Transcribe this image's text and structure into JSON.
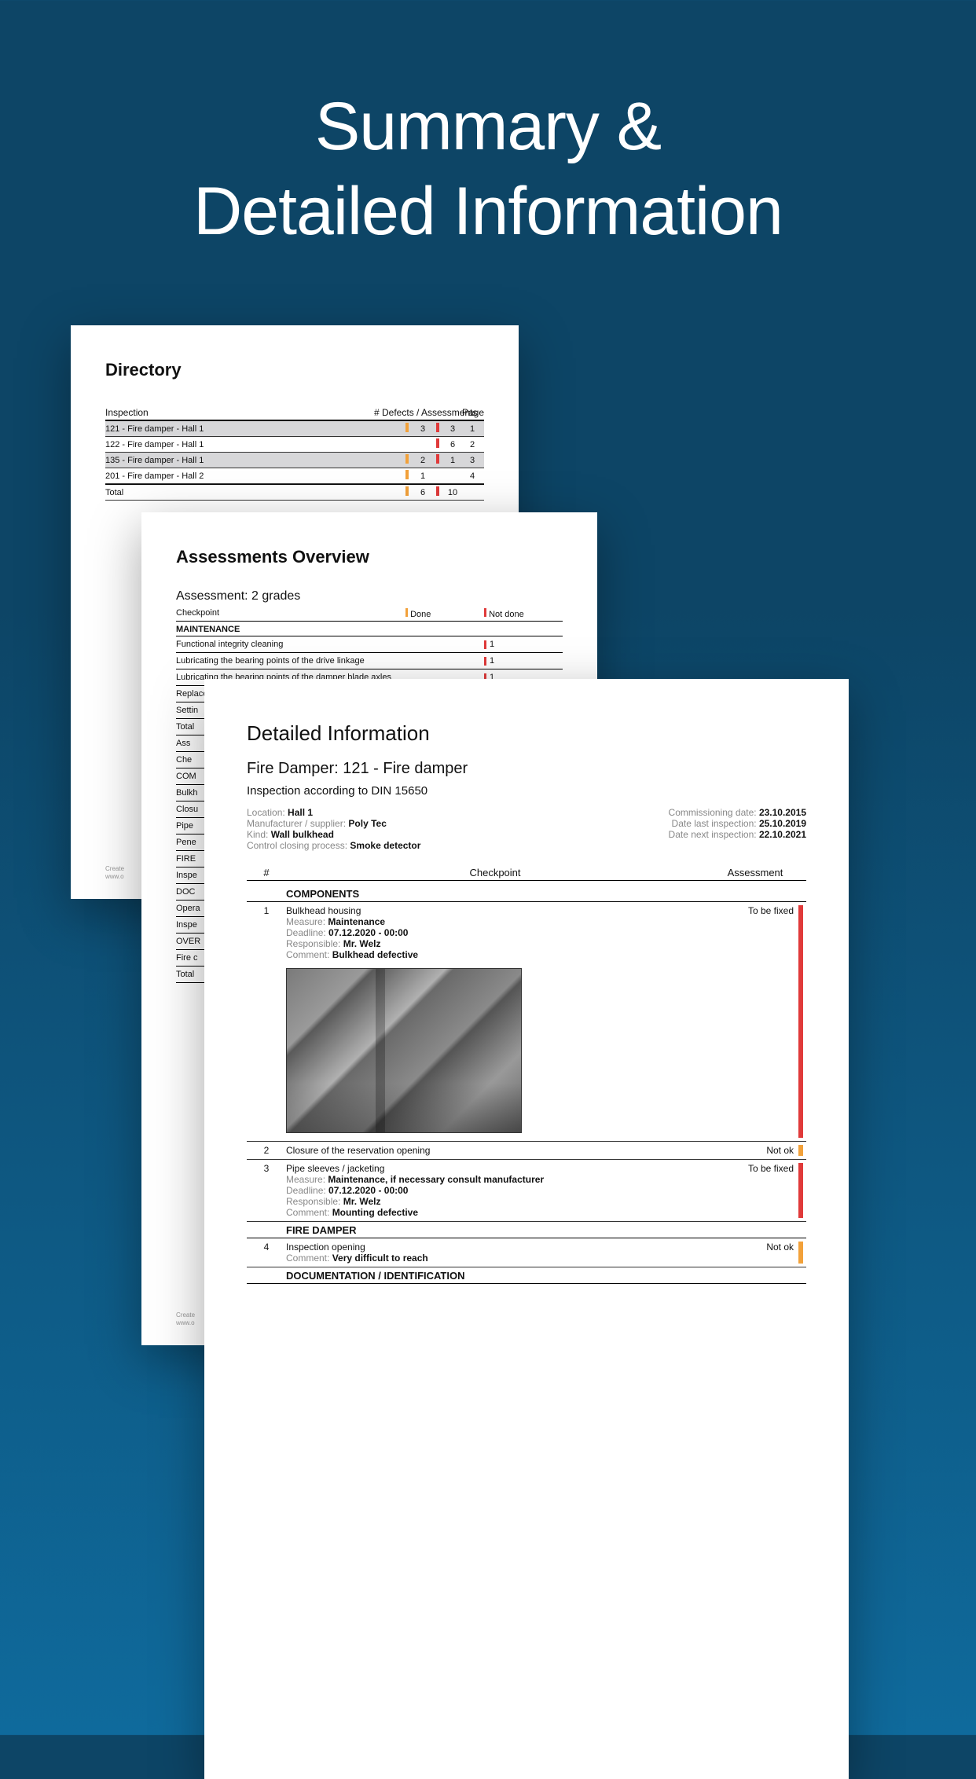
{
  "colors": {
    "bg_top": "#0d4566",
    "bg_bottom": "#0f6a9c",
    "paper": "#ffffff",
    "text": "#111111",
    "muted": "#888888",
    "zebra": "#d7d7d9",
    "tick_orange": "#f2a13a",
    "tick_red": "#e03a3a",
    "tick_darkred": "#b01818"
  },
  "hero": {
    "line1": "Summary &",
    "line2": "Detailed Information"
  },
  "directory": {
    "title": "Directory",
    "head_inspection": "Inspection",
    "head_mid": "# Defects / Assessments",
    "head_page": "Page",
    "rows": [
      {
        "label": "121 - Fire damper - Hall 1",
        "zebra": true,
        "t1": "#f2a13a",
        "v1": "3",
        "t2": "#e03a3a",
        "v2": "3",
        "page": "1"
      },
      {
        "label": "122 - Fire damper - Hall 1",
        "zebra": false,
        "t1": "",
        "v1": "",
        "t2": "#e03a3a",
        "v2": "6",
        "page": "2"
      },
      {
        "label": "135 - Fire damper - Hall 1",
        "zebra": true,
        "t1": "#f2a13a",
        "v1": "2",
        "t2": "#e03a3a",
        "v2": "1",
        "page": "3"
      },
      {
        "label": "201 - Fire damper - Hall 2",
        "zebra": false,
        "t1": "#f2a13a",
        "v1": "1",
        "t2": "",
        "v2": "",
        "page": "4"
      }
    ],
    "total": {
      "label": "Total",
      "t1": "#f2a13a",
      "v1": "6",
      "t2": "#e03a3a",
      "v2": "10",
      "page": ""
    },
    "create": "Create",
    "www": "www.o"
  },
  "overview": {
    "title": "Assessments Overview",
    "subtitle": "Assessment: 2 grades",
    "head_checkpoint": "Checkpoint",
    "head_done": "Done",
    "head_notdone": "Not done",
    "category": "MAINTENANCE",
    "rows": [
      {
        "label": "Functional integrity cleaning",
        "done": "",
        "notdone": "1"
      },
      {
        "label": "Lubricating the bearing points of the drive linkage",
        "done": "",
        "notdone": "1"
      },
      {
        "label": "Lubricating the bearing points of the damper blade axles",
        "done": "",
        "notdone": "1"
      }
    ],
    "fragments": [
      "Replace fusible link",
      "Settin",
      "Total",
      "Ass",
      "Che",
      "COM",
      "Bulkh",
      "Closu",
      "Pipe",
      "Pene",
      "FIRE",
      "Inspe",
      "DOC",
      "Opera",
      "Inspe",
      "OVER",
      "Fire c",
      "Total"
    ],
    "create": "Create",
    "www": "www.o",
    "done_tick": "#f2a13a",
    "notdone_tick": "#e03a3a"
  },
  "detail": {
    "title": "Detailed Information",
    "subtitle": "Fire Damper: 121 - Fire damper",
    "standard": "Inspection according to DIN 15650",
    "meta_left": [
      {
        "k": "Location:",
        "v": "Hall 1"
      },
      {
        "k": "Manufacturer / supplier:",
        "v": "Poly Tec"
      },
      {
        "k": "Kind:",
        "v": "Wall bulkhead"
      },
      {
        "k": "Control closing process:",
        "v": "Smoke detector"
      }
    ],
    "meta_right": [
      {
        "k": "Commissioning date:",
        "v": "23.10.2015"
      },
      {
        "k": "Date last inspection:",
        "v": "25.10.2019"
      },
      {
        "k": "Date next inspection:",
        "v": "22.10.2021"
      }
    ],
    "head_n": "#",
    "head_cp": "Checkpoint",
    "head_assess": "Assessment",
    "categories": [
      {
        "name": "COMPONENTS",
        "items": [
          {
            "n": "1",
            "name": "Bulkhead housing",
            "attrs": [
              {
                "k": "Measure:",
                "v": "Maintenance"
              },
              {
                "k": "Deadline:",
                "v": "07.12.2020 - 00:00"
              },
              {
                "k": "Responsible:",
                "v": "Mr. Welz"
              },
              {
                "k": "Comment:",
                "v": "Bulkhead defective"
              }
            ],
            "assessment": "To be fixed",
            "bar": "#e03a3a",
            "photo": true
          },
          {
            "n": "2",
            "name": "Closure of the reservation opening",
            "attrs": [],
            "assessment": "Not ok",
            "bar": "#f2a13a",
            "photo": false
          },
          {
            "n": "3",
            "name": "Pipe sleeves / jacketing",
            "attrs": [
              {
                "k": "Measure:",
                "v": "Maintenance, if necessary consult manufacturer"
              },
              {
                "k": "Deadline:",
                "v": "07.12.2020 - 00:00"
              },
              {
                "k": "Responsible:",
                "v": "Mr. Welz"
              },
              {
                "k": "Comment:",
                "v": "Mounting defective"
              }
            ],
            "assessment": "To be fixed",
            "bar": "#e03a3a",
            "photo": false
          }
        ]
      },
      {
        "name": "FIRE DAMPER",
        "items": [
          {
            "n": "4",
            "name": "Inspection opening",
            "attrs": [
              {
                "k": "Comment:",
                "v": "Very difficult to reach"
              }
            ],
            "assessment": "Not ok",
            "bar": "#f2a13a",
            "photo": false
          }
        ]
      }
    ],
    "cutoff_cat": "DOCUMENTATION / IDENTIFICATION"
  }
}
